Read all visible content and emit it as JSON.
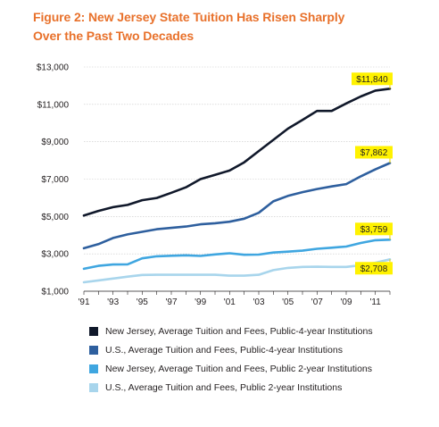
{
  "chart_data": {
    "type": "line",
    "title_line1": "Figure 2: New Jersey State Tuition Has Risen Sharply",
    "title_line2": "Over the Past Two Decades",
    "title_color": "#e8712b",
    "x": [
      1991,
      1992,
      1993,
      1994,
      1995,
      1996,
      1997,
      1998,
      1999,
      2000,
      2001,
      2002,
      2003,
      2004,
      2005,
      2006,
      2007,
      2008,
      2009,
      2010,
      2011,
      2012
    ],
    "x_tick_labels": [
      "'91",
      "'93",
      "'95",
      "'97",
      "'99",
      "'01",
      "'03",
      "'05",
      "'07",
      "'09",
      "'11"
    ],
    "x_tick_values": [
      1991,
      1993,
      1995,
      1997,
      1999,
      2001,
      2003,
      2005,
      2007,
      2009,
      2011
    ],
    "y_tick_labels": [
      "$1,000",
      "$3,000",
      "$5,000",
      "$7,000",
      "$9,000",
      "$11,000",
      "$13,000"
    ],
    "y_tick_values": [
      1000,
      3000,
      5000,
      7000,
      9000,
      11000,
      13000
    ],
    "ylim": [
      1000,
      13000
    ],
    "xlim": [
      1991,
      2012
    ],
    "grid": true,
    "legend_position": "bottom",
    "series": [
      {
        "name": "New Jersey, Average Tuition and Fees, Public-4-year Institutions",
        "color": "#10182a",
        "values": [
          5050,
          5300,
          5500,
          5620,
          5870,
          5990,
          6270,
          6560,
          7000,
          7230,
          7460,
          7900,
          8500,
          9100,
          9700,
          10170,
          10650,
          10650,
          11050,
          11420,
          11740,
          11840
        ],
        "end_label": "$11,840"
      },
      {
        "name": "U.S., Average Tuition and Fees, Public-4-year Institutions",
        "color": "#2e5f9e",
        "values": [
          3300,
          3520,
          3850,
          4040,
          4180,
          4320,
          4390,
          4460,
          4580,
          4640,
          4720,
          4880,
          5200,
          5810,
          6100,
          6300,
          6470,
          6610,
          6730,
          7150,
          7520,
          7862
        ],
        "end_label": "$7,862"
      },
      {
        "name": "New Jersey, Average Tuition and Fees, Public 2-year Institutions",
        "color": "#3fa6e0",
        "values": [
          2200,
          2360,
          2430,
          2440,
          2760,
          2870,
          2900,
          2920,
          2890,
          2970,
          3030,
          2950,
          2960,
          3070,
          3120,
          3170,
          3270,
          3330,
          3390,
          3580,
          3730,
          3759
        ],
        "end_label": "$3,759"
      },
      {
        "name": "U.S., Average Tuition and Fees, Public 2-year Institutions",
        "color": "#a8d5ec",
        "values": [
          1480,
          1580,
          1680,
          1780,
          1870,
          1880,
          1880,
          1880,
          1880,
          1880,
          1830,
          1830,
          1880,
          2130,
          2250,
          2300,
          2310,
          2300,
          2300,
          2390,
          2520,
          2708
        ],
        "end_label": "$2,708"
      }
    ],
    "label_bg": "#fff200"
  }
}
